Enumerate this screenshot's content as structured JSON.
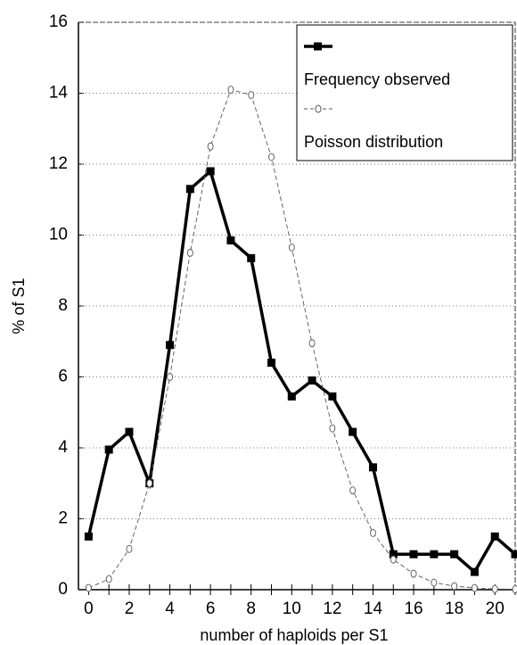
{
  "chart_data": {
    "type": "line",
    "x_label": "number of haploids per S1",
    "y_label": "% of S1",
    "x": [
      0,
      1,
      2,
      3,
      4,
      5,
      6,
      7,
      8,
      9,
      10,
      11,
      12,
      13,
      14,
      15,
      16,
      17,
      18,
      19,
      20,
      21
    ],
    "series": [
      {
        "name": "Frequency observed",
        "color": "#000000",
        "values": [
          1.5,
          3.95,
          4.45,
          3.0,
          6.9,
          11.3,
          11.8,
          9.85,
          9.35,
          6.4,
          5.45,
          5.9,
          5.45,
          4.45,
          3.45,
          1.0,
          1.0,
          1.0,
          1.0,
          0.5,
          1.5,
          1.0
        ]
      },
      {
        "name": "Poisson distribution",
        "color": "#555555",
        "values": [
          0.05,
          0.3,
          1.15,
          3.0,
          6.0,
          9.5,
          12.5,
          14.1,
          13.95,
          12.2,
          9.65,
          6.95,
          4.55,
          2.8,
          1.6,
          0.85,
          0.45,
          0.2,
          0.1,
          0.05,
          0.02,
          0.01
        ]
      }
    ],
    "xlim": [
      -0.5,
      21
    ],
    "ylim": [
      0,
      16
    ],
    "xticks": [
      0,
      2,
      4,
      6,
      8,
      10,
      12,
      14,
      16,
      18,
      20
    ],
    "yticks": [
      0,
      2,
      4,
      6,
      8,
      10,
      12,
      14,
      16
    ],
    "grid": true,
    "legend": "upper right"
  }
}
